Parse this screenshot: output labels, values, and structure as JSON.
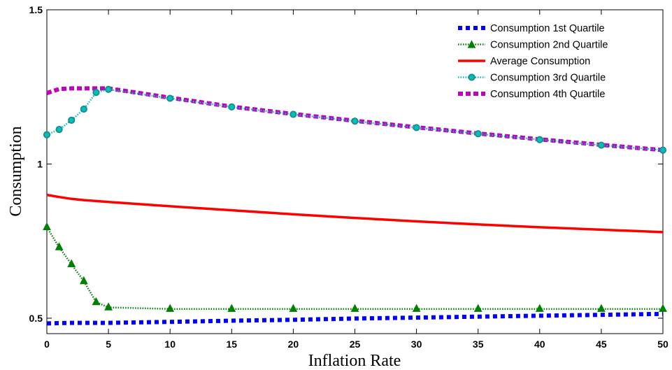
{
  "chart_data": {
    "type": "line",
    "xlabel": "Inflation Rate",
    "ylabel": "Consumption",
    "xlim": [
      0,
      50
    ],
    "ylim": [
      0.45,
      1.5
    ],
    "x_ticks": [
      0,
      5,
      10,
      15,
      20,
      25,
      30,
      35,
      40,
      45,
      50
    ],
    "y_ticks": [
      0.5,
      1,
      1.5
    ],
    "x_tick_labels": [
      "0",
      "5",
      "10",
      "15",
      "20",
      "25",
      "30",
      "35",
      "40",
      "45",
      "50"
    ],
    "y_tick_labels": [
      "0.5",
      "1",
      "1.5"
    ],
    "grid": false,
    "legend_position": "top-right",
    "series": [
      {
        "name": "Consumption 1st Quartile",
        "color": "#0000ff",
        "style": "dotted-thick",
        "x": [
          0,
          1,
          2,
          3,
          4,
          5,
          10,
          15,
          20,
          25,
          30,
          35,
          40,
          45,
          50
        ],
        "y": [
          0.483,
          0.484,
          0.485,
          0.485,
          0.485,
          0.485,
          0.488,
          0.492,
          0.495,
          0.499,
          0.502,
          0.505,
          0.508,
          0.511,
          0.514
        ]
      },
      {
        "name": "Consumption 2nd Quartile",
        "color": "#008000",
        "style": "dotted-triangle",
        "x": [
          0,
          1,
          2,
          3,
          4,
          5,
          10,
          15,
          20,
          25,
          30,
          35,
          40,
          45,
          50
        ],
        "y": [
          0.795,
          0.73,
          0.675,
          0.62,
          0.552,
          0.535,
          0.53,
          0.53,
          0.53,
          0.53,
          0.53,
          0.53,
          0.53,
          0.53,
          0.53
        ]
      },
      {
        "name": "Average Consumption",
        "color": "#ff0000",
        "style": "solid",
        "x": [
          0,
          1,
          2,
          3,
          4,
          5,
          10,
          15,
          20,
          25,
          30,
          35,
          40,
          45,
          50
        ],
        "y": [
          0.9,
          0.893,
          0.887,
          0.883,
          0.88,
          0.877,
          0.863,
          0.85,
          0.837,
          0.825,
          0.814,
          0.804,
          0.795,
          0.787,
          0.779
        ]
      },
      {
        "name": "Consumption 3rd Quartile",
        "color": "#00bfbf",
        "style": "dotted-circle",
        "x": [
          0,
          1,
          2,
          3,
          4,
          5,
          10,
          15,
          20,
          25,
          30,
          35,
          40,
          45,
          50
        ],
        "y": [
          1.095,
          1.112,
          1.142,
          1.178,
          1.232,
          1.242,
          1.213,
          1.185,
          1.161,
          1.139,
          1.118,
          1.098,
          1.079,
          1.061,
          1.045
        ]
      },
      {
        "name": "Consumption 4th Quartile",
        "color": "#bf00bf",
        "style": "dashed-thick",
        "x": [
          0,
          1,
          2,
          3,
          4,
          5,
          10,
          15,
          20,
          25,
          30,
          35,
          40,
          45,
          50
        ],
        "y": [
          1.23,
          1.243,
          1.245,
          1.245,
          1.245,
          1.245,
          1.215,
          1.186,
          1.162,
          1.14,
          1.119,
          1.099,
          1.08,
          1.062,
          1.045
        ]
      }
    ]
  }
}
